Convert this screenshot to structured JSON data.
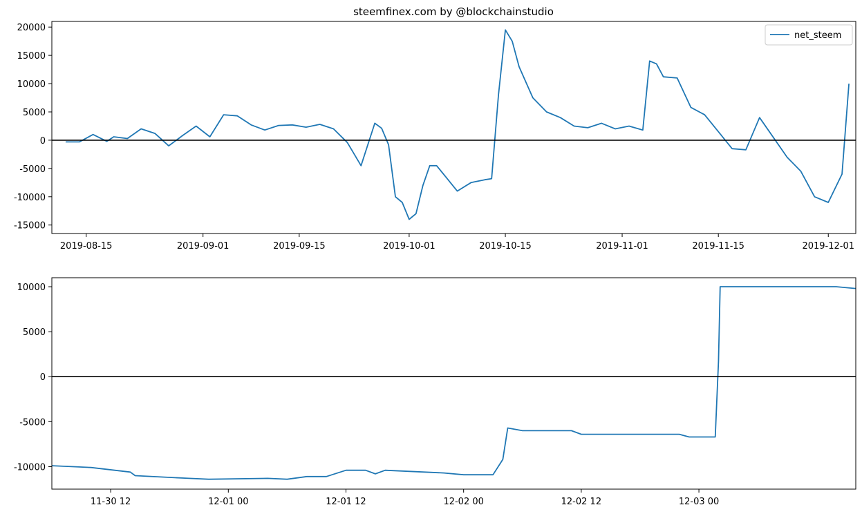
{
  "title": "steemfinex.com by @blockchainstudio",
  "colors": {
    "series": "#1f77b4",
    "zero_line": "#000000",
    "axis": "#000000",
    "background": "#ffffff"
  },
  "chart_data": [
    {
      "type": "line",
      "title": "steemfinex.com by @blockchainstudio",
      "xlabel": "",
      "ylabel": "",
      "x_type": "date",
      "xlim": [
        "2019-08-10",
        "2019-12-05"
      ],
      "ylim": [
        -16500,
        21000
      ],
      "x_ticks": [
        "2019-08-15",
        "2019-09-01",
        "2019-09-15",
        "2019-10-01",
        "2019-10-15",
        "2019-11-01",
        "2019-11-15",
        "2019-12-01"
      ],
      "y_ticks": [
        -15000,
        -10000,
        -5000,
        0,
        5000,
        10000,
        15000,
        20000
      ],
      "legend": {
        "placement": "upper right",
        "entries": [
          "net_steem"
        ]
      },
      "grid": false,
      "reference_line": {
        "y": 0,
        "color": "#000000"
      },
      "series": [
        {
          "name": "net_steem",
          "color": "#1f77b4",
          "x": [
            "2019-08-12",
            "2019-08-14",
            "2019-08-16",
            "2019-08-18",
            "2019-08-19",
            "2019-08-21",
            "2019-08-23",
            "2019-08-25",
            "2019-08-27",
            "2019-08-29",
            "2019-08-31",
            "2019-09-02",
            "2019-09-04",
            "2019-09-06",
            "2019-09-08",
            "2019-09-10",
            "2019-09-12",
            "2019-09-14",
            "2019-09-16",
            "2019-09-18",
            "2019-09-20",
            "2019-09-22",
            "2019-09-24",
            "2019-09-26",
            "2019-09-27",
            "2019-09-28",
            "2019-09-29",
            "2019-09-30",
            "2019-10-01",
            "2019-10-02",
            "2019-10-03",
            "2019-10-04",
            "2019-10-05",
            "2019-10-06",
            "2019-10-08",
            "2019-10-10",
            "2019-10-12",
            "2019-10-13",
            "2019-10-14",
            "2019-10-15",
            "2019-10-16",
            "2019-10-17",
            "2019-10-19",
            "2019-10-21",
            "2019-10-23",
            "2019-10-25",
            "2019-10-27",
            "2019-10-29",
            "2019-10-31",
            "2019-11-02",
            "2019-11-04",
            "2019-11-05",
            "2019-11-06",
            "2019-11-07",
            "2019-11-09",
            "2019-11-11",
            "2019-11-13",
            "2019-11-15",
            "2019-11-17",
            "2019-11-19",
            "2019-11-21",
            "2019-11-23",
            "2019-11-25",
            "2019-11-27",
            "2019-11-29",
            "2019-12-01",
            "2019-12-03",
            "2019-12-04"
          ],
          "y": [
            -300,
            -300,
            1000,
            -200,
            600,
            300,
            2000,
            1200,
            -1000,
            800,
            2500,
            600,
            4500,
            4300,
            2700,
            1800,
            2600,
            2700,
            2300,
            2800,
            2000,
            -400,
            -4500,
            3000,
            2100,
            -800,
            -10000,
            -11000,
            -14000,
            -13000,
            -8000,
            -4500,
            -4500,
            -6000,
            -9000,
            -7500,
            -7000,
            -6800,
            8000,
            19500,
            17500,
            13000,
            7500,
            5000,
            4000,
            2500,
            2200,
            3000,
            2000,
            2500,
            1800,
            14000,
            13500,
            11200,
            11000,
            5800,
            4500,
            1500,
            -1500,
            -1700,
            4000,
            500,
            -3000,
            -5500,
            -10000,
            -11000,
            -6000,
            10000
          ]
        }
      ]
    },
    {
      "type": "line",
      "title": "",
      "xlabel": "",
      "ylabel": "",
      "x_type": "datetime",
      "xlim": [
        "2019-11-30T06:00",
        "2019-12-03T16:00"
      ],
      "ylim": [
        -12500,
        11000
      ],
      "x_ticks": [
        {
          "at": "2019-11-30T12:00",
          "label": "11-30 12"
        },
        {
          "at": "2019-12-01T00:00",
          "label": "12-01 00"
        },
        {
          "at": "2019-12-01T12:00",
          "label": "12-01 12"
        },
        {
          "at": "2019-12-02T00:00",
          "label": "12-02 00"
        },
        {
          "at": "2019-12-02T12:00",
          "label": "12-02 12"
        },
        {
          "at": "2019-12-03T00:00",
          "label": "12-03 00"
        }
      ],
      "y_ticks": [
        -10000,
        -5000,
        0,
        5000,
        10000
      ],
      "grid": false,
      "reference_line": {
        "y": 0,
        "color": "#000000"
      },
      "series": [
        {
          "name": "",
          "color": "#1f77b4",
          "x": [
            "2019-11-30T06:00",
            "2019-11-30T08:00",
            "2019-11-30T10:00",
            "2019-11-30T14:00",
            "2019-11-30T14:30",
            "2019-11-30T20:00",
            "2019-11-30T22:00",
            "2019-12-01T04:00",
            "2019-12-01T06:00",
            "2019-12-01T08:00",
            "2019-12-01T10:00",
            "2019-12-01T12:00",
            "2019-12-01T14:00",
            "2019-12-01T15:00",
            "2019-12-01T16:00",
            "2019-12-01T22:00",
            "2019-12-02T00:00",
            "2019-12-02T03:00",
            "2019-12-02T04:00",
            "2019-12-02T04:30",
            "2019-12-02T06:00",
            "2019-12-02T11:00",
            "2019-12-02T12:00",
            "2019-12-02T20:00",
            "2019-12-02T22:00",
            "2019-12-02T23:00",
            "2019-12-03T01:40",
            "2019-12-03T02:00",
            "2019-12-03T02:10",
            "2019-12-03T14:00",
            "2019-12-03T16:00"
          ],
          "y": [
            -9900,
            -10000,
            -10100,
            -10600,
            -11000,
            -11300,
            -11400,
            -11300,
            -11400,
            -11100,
            -11100,
            -10400,
            -10400,
            -10800,
            -10400,
            -10700,
            -10900,
            -10900,
            -9200,
            -5700,
            -6000,
            -6000,
            -6400,
            -6400,
            -6400,
            -6700,
            -6700,
            1700,
            10000,
            10000,
            9800
          ]
        }
      ]
    }
  ]
}
